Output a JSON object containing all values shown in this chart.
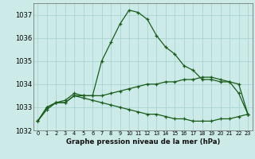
{
  "xlabel": "Graphe pression niveau de la mer (hPa)",
  "background_color": "#cceae8",
  "grid_color": "#aad4d0",
  "line_color": "#1a5c1a",
  "x_values": [
    0,
    1,
    2,
    3,
    4,
    5,
    6,
    7,
    8,
    9,
    10,
    11,
    12,
    13,
    14,
    15,
    16,
    17,
    18,
    19,
    20,
    21,
    22,
    23
  ],
  "series1": [
    1032.4,
    1032.9,
    1033.2,
    1033.3,
    1033.6,
    1033.5,
    1033.5,
    1035.0,
    1035.8,
    1036.6,
    1037.2,
    1037.1,
    1036.8,
    1036.1,
    1035.6,
    1035.3,
    1034.8,
    1034.6,
    1034.2,
    1034.2,
    1034.1,
    1034.1,
    1033.6,
    1032.7
  ],
  "series2": [
    1032.4,
    1033.0,
    1033.2,
    1033.2,
    1033.5,
    1033.5,
    1033.5,
    1033.5,
    1033.6,
    1033.7,
    1033.8,
    1033.9,
    1034.0,
    1034.0,
    1034.1,
    1034.1,
    1034.2,
    1034.2,
    1034.3,
    1034.3,
    1034.2,
    1034.1,
    1034.0,
    1032.7
  ],
  "series3": [
    1032.4,
    1033.0,
    1033.2,
    1033.2,
    1033.5,
    1033.4,
    1033.3,
    1033.2,
    1033.1,
    1033.0,
    1032.9,
    1032.8,
    1032.7,
    1032.7,
    1032.6,
    1032.5,
    1032.5,
    1032.4,
    1032.4,
    1032.4,
    1032.5,
    1032.5,
    1032.6,
    1032.7
  ],
  "ylim": [
    1032.0,
    1037.5
  ],
  "yticks": [
    1032,
    1033,
    1034,
    1035,
    1036,
    1037
  ],
  "xticks": [
    0,
    1,
    2,
    3,
    4,
    5,
    6,
    7,
    8,
    9,
    10,
    11,
    12,
    13,
    14,
    15,
    16,
    17,
    18,
    19,
    20,
    21,
    22,
    23
  ],
  "marker": "+",
  "markersize": 3.5,
  "linewidth": 0.9,
  "ytick_fontsize": 6.0,
  "xtick_fontsize": 4.8,
  "xlabel_fontsize": 6.2
}
